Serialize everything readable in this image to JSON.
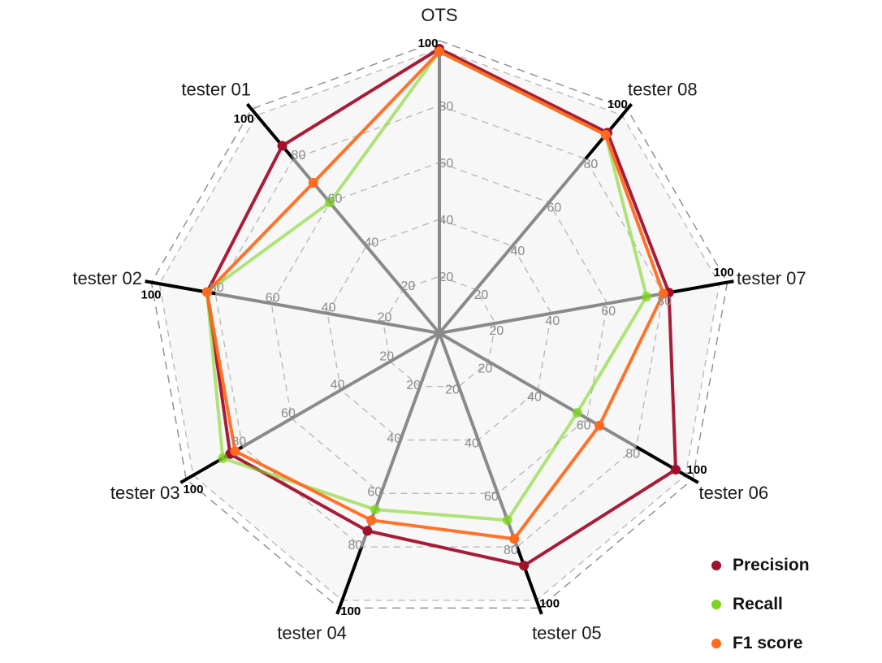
{
  "chart_data": {
    "type": "radar",
    "axes": [
      "OTS",
      "tester 08",
      "tester 07",
      "tester 06",
      "tester 05",
      "tester 04",
      "tester 03",
      "tester 02",
      "tester 01"
    ],
    "range": [
      0,
      100
    ],
    "grid_levels": [
      20,
      40,
      60,
      80,
      100
    ],
    "tick_labels": [
      "20",
      "40",
      "60",
      "80"
    ],
    "max_tick_label": "100",
    "highlighted_axes": [
      "tester 08",
      "tester 07",
      "tester 06",
      "tester 05",
      "tester 04",
      "tester 03",
      "tester 02",
      "tester 01"
    ],
    "series": [
      {
        "name": "Precision",
        "color": "#A3102E",
        "values": [
          100,
          92,
          82,
          96,
          87,
          74,
          85,
          83,
          86
        ]
      },
      {
        "name": "Recall",
        "color": "#7ED321",
        "values": [
          99,
          91,
          74,
          56,
          70,
          66,
          88,
          83,
          60
        ]
      },
      {
        "name": "F1 score",
        "color": "#FF6A1F",
        "values": [
          99,
          91,
          80,
          65,
          77,
          70,
          83,
          83,
          69
        ]
      }
    ],
    "legend_position": "bottom-right",
    "grid": true
  }
}
